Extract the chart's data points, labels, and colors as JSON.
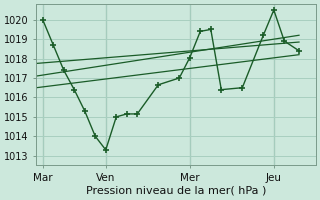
{
  "background_color": "#cce8dc",
  "grid_color": "#a8cfc0",
  "line_color": "#1a5c28",
  "title": "Pression niveau de la mer( hPa )",
  "ylim": [
    1012.5,
    1020.8
  ],
  "yticks": [
    1013,
    1014,
    1015,
    1016,
    1017,
    1018,
    1019,
    1020
  ],
  "day_labels": [
    "Mar",
    "Ven",
    "Mer",
    "Jeu"
  ],
  "day_positions": [
    0,
    3,
    7,
    11
  ],
  "xlim": [
    -0.3,
    13.0
  ],
  "main_x": [
    0,
    0.5,
    1.0,
    1.5,
    2.0,
    2.5,
    3.0,
    3.5,
    4.0,
    4.5,
    5.5,
    6.5,
    7.0,
    7.5,
    8.0,
    8.5,
    9.5,
    10.5,
    11.0,
    11.5,
    12.2
  ],
  "main_y": [
    1020.0,
    1018.7,
    1017.4,
    1016.4,
    1015.3,
    1014.0,
    1013.3,
    1015.0,
    1015.15,
    1015.15,
    1016.65,
    1017.0,
    1018.05,
    1019.4,
    1019.5,
    1016.4,
    1016.5,
    1019.2,
    1020.5,
    1018.9,
    1018.4
  ],
  "line1_x": [
    -0.3,
    12.2
  ],
  "line1_y": [
    1017.75,
    1018.85
  ],
  "line2_x": [
    -0.3,
    12.2
  ],
  "line2_y": [
    1017.1,
    1019.2
  ],
  "line3_x": [
    -0.3,
    12.2
  ],
  "line3_y": [
    1016.5,
    1018.2
  ]
}
